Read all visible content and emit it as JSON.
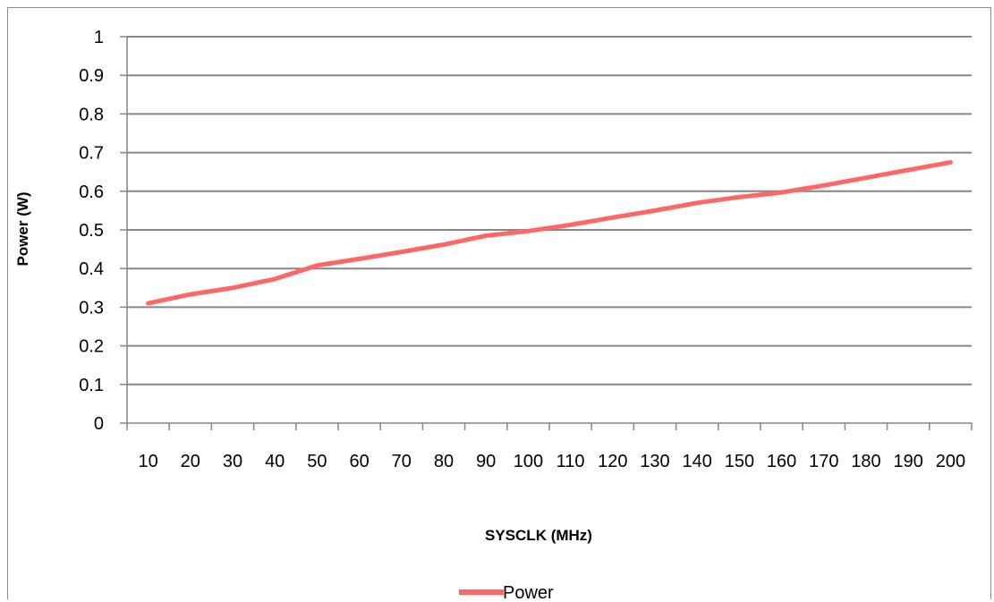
{
  "chart_data": {
    "type": "line",
    "title": "",
    "xlabel": "SYSCLK (MHz)",
    "ylabel": "Power (W)",
    "categories": [
      10,
      20,
      30,
      40,
      50,
      60,
      70,
      80,
      90,
      100,
      110,
      120,
      130,
      140,
      150,
      160,
      170,
      180,
      190,
      200
    ],
    "series": [
      {
        "name": "Power",
        "color": "#ff6666",
        "values": [
          0.31,
          0.333,
          0.35,
          0.373,
          0.408,
          0.425,
          0.443,
          0.462,
          0.485,
          0.497,
          0.513,
          0.532,
          0.55,
          0.57,
          0.585,
          0.597,
          0.615,
          0.635,
          0.655,
          0.675
        ]
      }
    ],
    "ylim": [
      0,
      1
    ],
    "yticks": [
      "0",
      "0.1",
      "0.2",
      "0.3",
      "0.4",
      "0.5",
      "0.6",
      "0.7",
      "0.8",
      "0.9",
      "1"
    ],
    "grid": true,
    "legend": "bottom"
  }
}
